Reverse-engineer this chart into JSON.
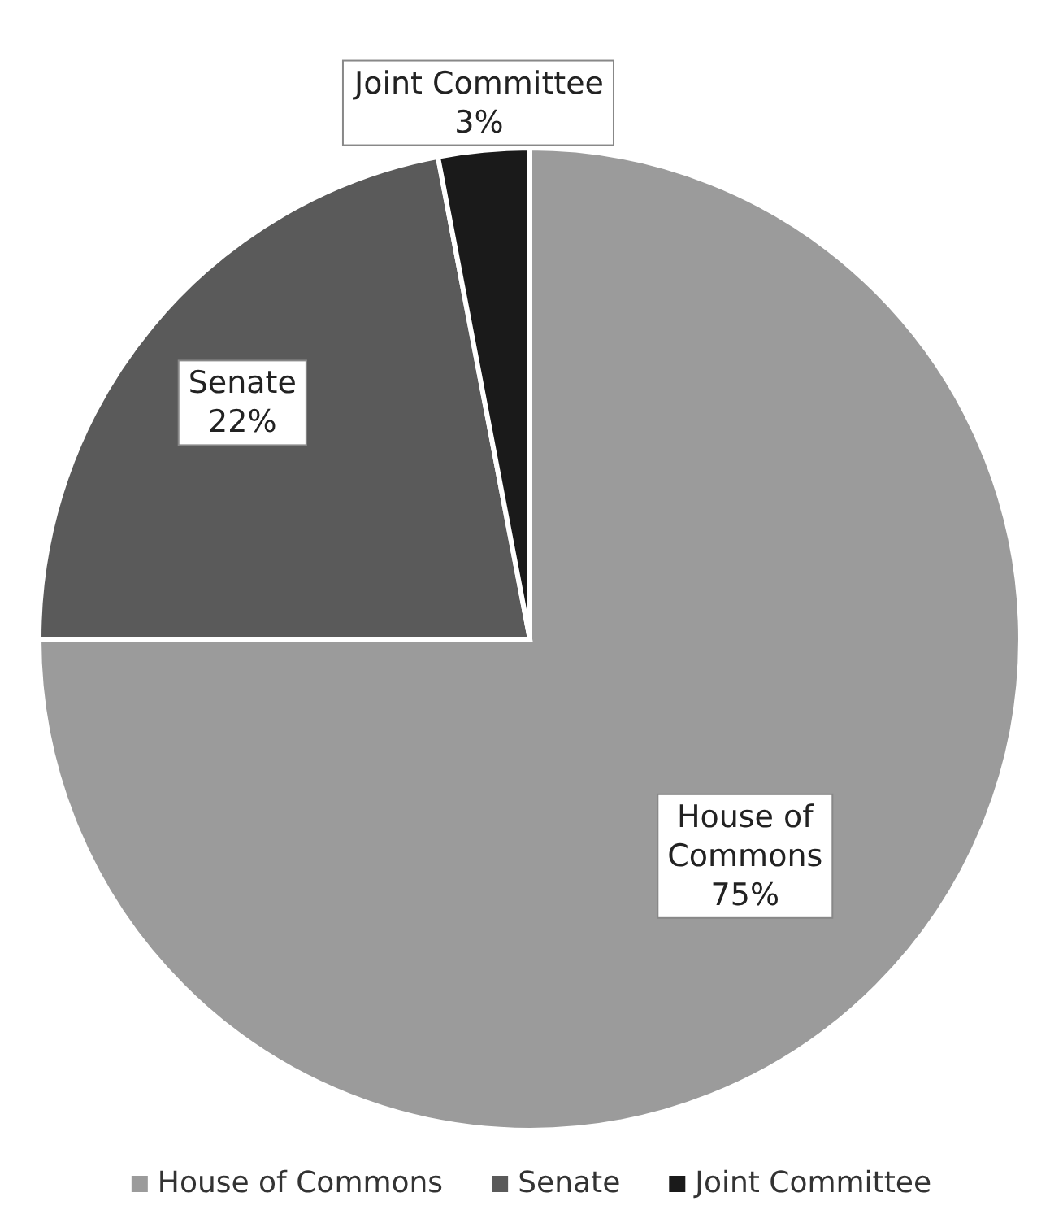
{
  "chart_data": {
    "type": "pie",
    "categories": [
      "House of Commons",
      "Senate",
      "Joint Committee"
    ],
    "values": [
      75,
      22,
      3
    ],
    "value_labels": [
      "75%",
      "22%",
      "3%"
    ],
    "colors": [
      "#9b9b9b",
      "#5a5a5a",
      "#1a1a1a"
    ],
    "legend": "bottom"
  }
}
